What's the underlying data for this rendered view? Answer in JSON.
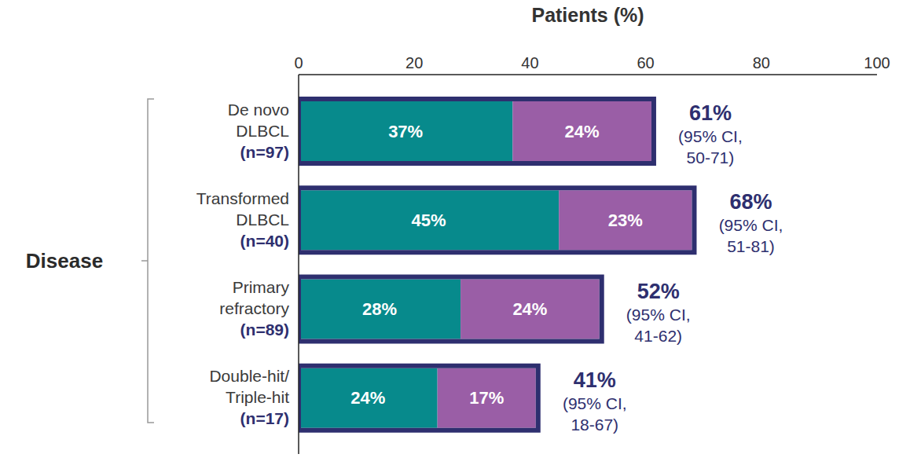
{
  "chart_data": {
    "type": "bar",
    "orientation": "horizontal",
    "stacked": true,
    "data_labels": true,
    "grid": false,
    "x_label": "Patients (%)",
    "group_label": "Disease",
    "categories": [
      "De novo\nDLBCL",
      "Transformed\nDLBCL",
      "Primary\nrefractory",
      "Double-hit/\nTriple-hit"
    ],
    "sample_sizes": [
      "(n=97)",
      "(n=40)",
      "(n=89)",
      "(n=17)"
    ],
    "series": [
      {
        "color": "#078a8c",
        "values": [
          37,
          45,
          28,
          24
        ],
        "value_labels": [
          "37%",
          "45%",
          "28%",
          "24%"
        ]
      },
      {
        "color": "#9a5ea6",
        "values": [
          24,
          23,
          24,
          17
        ],
        "value_labels": [
          "24%",
          "23%",
          "24%",
          "17%"
        ]
      }
    ],
    "totals": [
      61,
      68,
      52,
      41
    ],
    "total_labels": [
      "61%",
      "68%",
      "52%",
      "41%"
    ],
    "ci_labels": [
      [
        "(95% CI,",
        "50-71)"
      ],
      [
        "(95% CI,",
        "51-81)"
      ],
      [
        "(95% CI,",
        "41-62)"
      ],
      [
        "(95% CI,",
        "18-67)"
      ]
    ],
    "xlim": [
      0,
      100
    ],
    "xticks": [
      0,
      20,
      40,
      60,
      80,
      100
    ]
  }
}
